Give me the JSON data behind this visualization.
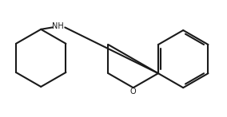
{
  "background": "#ffffff",
  "line_color": "#1a1a1a",
  "line_width": 1.5,
  "figsize": [
    2.84,
    1.47
  ],
  "dpi": 100,
  "nh_fontsize": 7.0,
  "o_fontsize": 7.0
}
